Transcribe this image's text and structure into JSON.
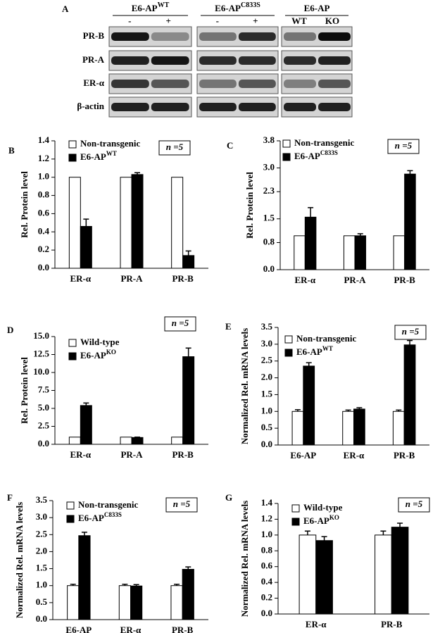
{
  "blot": {
    "label": "A",
    "groups": [
      {
        "title": "E6-AP",
        "sup": "WT",
        "lanes": [
          "-",
          "+"
        ]
      },
      {
        "title": "E6-AP",
        "sup": "C833S",
        "lanes": [
          "-",
          "+"
        ]
      },
      {
        "title": "E6-AP",
        "lanes": [
          "WT",
          "KO"
        ]
      }
    ],
    "rows": [
      "PR-B",
      "PR-A",
      "ER-α",
      "β-actin"
    ]
  },
  "chart_data": [
    {
      "type": "bar",
      "panel": "B",
      "ylabel": "Rel. Protein level",
      "annotation": "n =5",
      "categories": [
        "ER-α",
        "PR-A",
        "PR-B"
      ],
      "series": [
        {
          "name": "Non-transgenic",
          "color": "#ffffff",
          "values": [
            1,
            1,
            1
          ]
        },
        {
          "name": "E6-AP",
          "sup": "WT",
          "color": "#000000",
          "values": [
            0.46,
            1.03,
            0.14
          ],
          "errors": [
            0.08,
            0.02,
            0.05
          ]
        }
      ],
      "ylim": [
        0,
        1.4
      ],
      "yticks": [
        {
          "value": 0,
          "label": "0.0"
        },
        {
          "value": 0.2,
          "label": "0.2"
        },
        {
          "value": 0.4,
          "label": "0.4"
        },
        {
          "value": 0.6,
          "label": "0.6"
        },
        {
          "value": 0.8,
          "label": "0.8"
        },
        {
          "value": 1,
          "label": "1.0"
        },
        {
          "value": 1.2,
          "label": "1.2"
        },
        {
          "value": 1.4,
          "label": "1.4"
        }
      ]
    },
    {
      "type": "bar",
      "panel": "C",
      "ylabel": "Rel. Protein level",
      "annotation": "n =5",
      "categories": [
        "ER-α",
        "PR-A",
        "PR-B"
      ],
      "series": [
        {
          "name": "Non-transgenic",
          "color": "#ffffff",
          "values": [
            1,
            1,
            1
          ]
        },
        {
          "name": "E6-AP",
          "sup": "C833S",
          "color": "#000000",
          "values": [
            1.55,
            1.0,
            2.82
          ],
          "errors": [
            0.28,
            0.06,
            0.1
          ]
        }
      ],
      "ylim": [
        0,
        3.8
      ],
      "yticks": [
        {
          "value": 0,
          "label": "0.0"
        },
        {
          "value": 0.8,
          "label": "0.8"
        },
        {
          "value": 1.5,
          "label": "1.5"
        },
        {
          "value": 2.3,
          "label": "2.3"
        },
        {
          "value": 3,
          "label": "3.0"
        },
        {
          "value": 3.8,
          "label": "3.8"
        }
      ]
    },
    {
      "type": "bar",
      "panel": "D",
      "ylabel": "Rel. Protein level",
      "annotation": "n =5",
      "categories": [
        "ER-α",
        "PR-A",
        "PR-B"
      ],
      "series": [
        {
          "name": "Wild-type",
          "color": "#ffffff",
          "values": [
            1,
            1,
            1
          ]
        },
        {
          "name": "E6-AP",
          "sup": "KO",
          "color": "#000000",
          "values": [
            5.4,
            0.95,
            12.2
          ],
          "errors": [
            0.35,
            0.05,
            1.2
          ]
        }
      ],
      "ylim": [
        0,
        15
      ],
      "yticks": [
        {
          "value": 0,
          "label": "0.0"
        },
        {
          "value": 2.5,
          "label": "2.5"
        },
        {
          "value": 5,
          "label": "5.0"
        },
        {
          "value": 7.5,
          "label": "7.5"
        },
        {
          "value": 10,
          "label": "10.0"
        },
        {
          "value": 12.5,
          "label": "12.5"
        },
        {
          "value": 15,
          "label": "15.0"
        }
      ]
    },
    {
      "type": "bar",
      "panel": "E",
      "ylabel": "Normalized Rel. mRNA levels",
      "annotation": "n =5",
      "categories": [
        "E6-AP",
        "ER-α",
        "PR-B"
      ],
      "series": [
        {
          "name": "Non-transgenic",
          "color": "#ffffff",
          "values": [
            1,
            1,
            1
          ],
          "errors": [
            0.05,
            0.04,
            0.04
          ]
        },
        {
          "name": "E6-AP",
          "sup": "WT",
          "color": "#000000",
          "values": [
            2.35,
            1.07,
            2.98
          ],
          "errors": [
            0.1,
            0.04,
            0.13
          ]
        }
      ],
      "ylim": [
        0,
        3.5
      ],
      "yticks": [
        {
          "value": 0,
          "label": "0.0"
        },
        {
          "value": 0.5,
          "label": "0.5"
        },
        {
          "value": 1,
          "label": "1.0"
        },
        {
          "value": 1.5,
          "label": "1.5"
        },
        {
          "value": 2,
          "label": "2.0"
        },
        {
          "value": 2.5,
          "label": "2.5"
        },
        {
          "value": 3,
          "label": "3.0"
        },
        {
          "value": 3.5,
          "label": "3.5"
        }
      ]
    },
    {
      "type": "bar",
      "panel": "F",
      "ylabel": "Normalized Rel. mRNA levels",
      "annotation": "n =5",
      "categories": [
        "E6-AP",
        "ER-α",
        "PR-B"
      ],
      "series": [
        {
          "name": "Non-transgenic",
          "color": "#ffffff",
          "values": [
            1,
            1,
            1
          ],
          "errors": [
            0.04,
            0.04,
            0.04
          ]
        },
        {
          "name": "E6-AP",
          "sup": "C833S",
          "color": "#000000",
          "values": [
            2.47,
            0.99,
            1.48
          ],
          "errors": [
            0.1,
            0.04,
            0.07
          ]
        }
      ],
      "ylim": [
        0,
        3.5
      ],
      "yticks": [
        {
          "value": 0,
          "label": "0.0"
        },
        {
          "value": 0.5,
          "label": "0.5"
        },
        {
          "value": 1,
          "label": "1.0"
        },
        {
          "value": 1.5,
          "label": "1.5"
        },
        {
          "value": 2,
          "label": "2.0"
        },
        {
          "value": 2.5,
          "label": "2.5"
        },
        {
          "value": 3,
          "label": "3.0"
        },
        {
          "value": 3.5,
          "label": "3.5"
        }
      ]
    },
    {
      "type": "bar",
      "panel": "G",
      "ylabel": "Normalized Rel. mRNA levels",
      "annotation": "n =5",
      "categories": [
        "ER-α",
        "PR-B"
      ],
      "series": [
        {
          "name": "Wild-type",
          "color": "#ffffff",
          "values": [
            1,
            1
          ],
          "errors": [
            0.05,
            0.05
          ]
        },
        {
          "name": "E6-AP",
          "sup": "KO",
          "color": "#000000",
          "values": [
            0.93,
            1.1
          ],
          "errors": [
            0.05,
            0.05
          ]
        }
      ],
      "ylim": [
        0,
        1.4
      ],
      "yticks": [
        {
          "value": 0,
          "label": "0.0"
        },
        {
          "value": 0.2,
          "label": "0.2"
        },
        {
          "value": 0.4,
          "label": "0.4"
        },
        {
          "value": 0.6,
          "label": "0.6"
        },
        {
          "value": 0.8,
          "label": "0.8"
        },
        {
          "value": 1,
          "label": "1.0"
        },
        {
          "value": 1.2,
          "label": "1.2"
        },
        {
          "value": 1.4,
          "label": "1.4"
        }
      ]
    }
  ]
}
